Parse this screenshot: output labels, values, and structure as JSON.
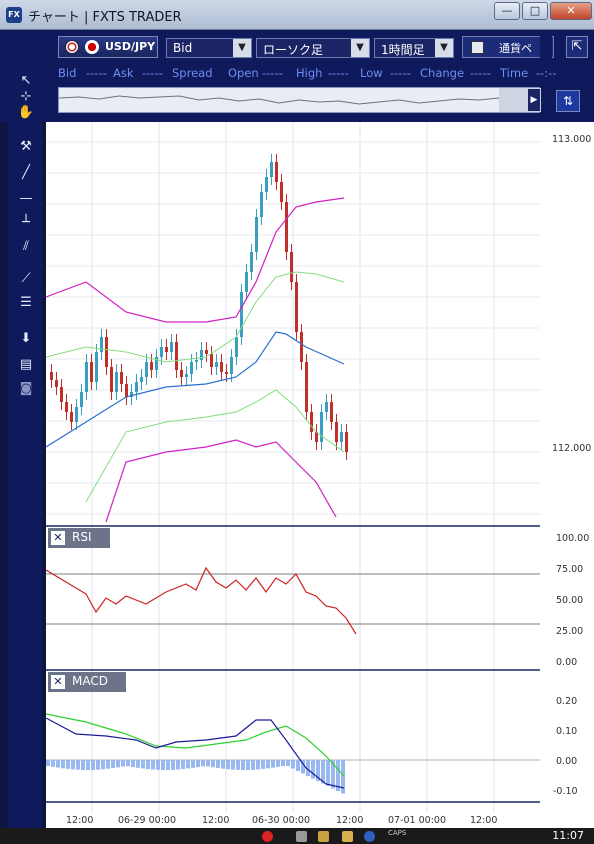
{
  "window": {
    "title": "チャート | FXTS TRADER",
    "app_icon": "FX",
    "minimize": "—",
    "maximize": "□",
    "close": "✕"
  },
  "toolbar": {
    "add_label": "+",
    "pair": "USD/JPY",
    "price_type": "Bid",
    "chart_type": "ローソク足",
    "timeframe": "1時間足",
    "currency_toggle": "通貨ペ",
    "collapse": "⇱"
  },
  "quote": {
    "bid_label": "Bid",
    "bid": "-----",
    "ask_label": "Ask",
    "ask": "-----",
    "spread_label": "Spread",
    "open_label": "Open",
    "open": "-----",
    "high_label": "High",
    "high": "-----",
    "low_label": "Low",
    "low": "-----",
    "change_label": "Change",
    "change": "-----",
    "time_label": "Time",
    "time": "--:--"
  },
  "price_axis": [
    "113.000",
    "112.000"
  ],
  "rsi": {
    "label": "RSI",
    "ticks": [
      "100.00",
      "75.00",
      "50.00",
      "25.00",
      "0.00"
    ]
  },
  "macd": {
    "label": "MACD",
    "ticks": [
      "0.20",
      "0.10",
      "0.00",
      "-0.10"
    ]
  },
  "time_axis": [
    "12:00",
    "06-29 00:00",
    "12:00",
    "06-30 00:00",
    "12:00",
    "07-01 00:00",
    "12:00"
  ],
  "taskbar": {
    "clock": "11:07",
    "caps": "CAPS"
  },
  "colors": {
    "bull": "#3a9ec0",
    "bear": "#c0302a",
    "upper_band": "#d020c0",
    "mid_band": "#7ee07e",
    "ma": "#2a6fd0",
    "rsi": "#d02020",
    "macd_line": "#1a1a9a",
    "signal": "#2ed02e",
    "hist": "#9ab8f0"
  }
}
